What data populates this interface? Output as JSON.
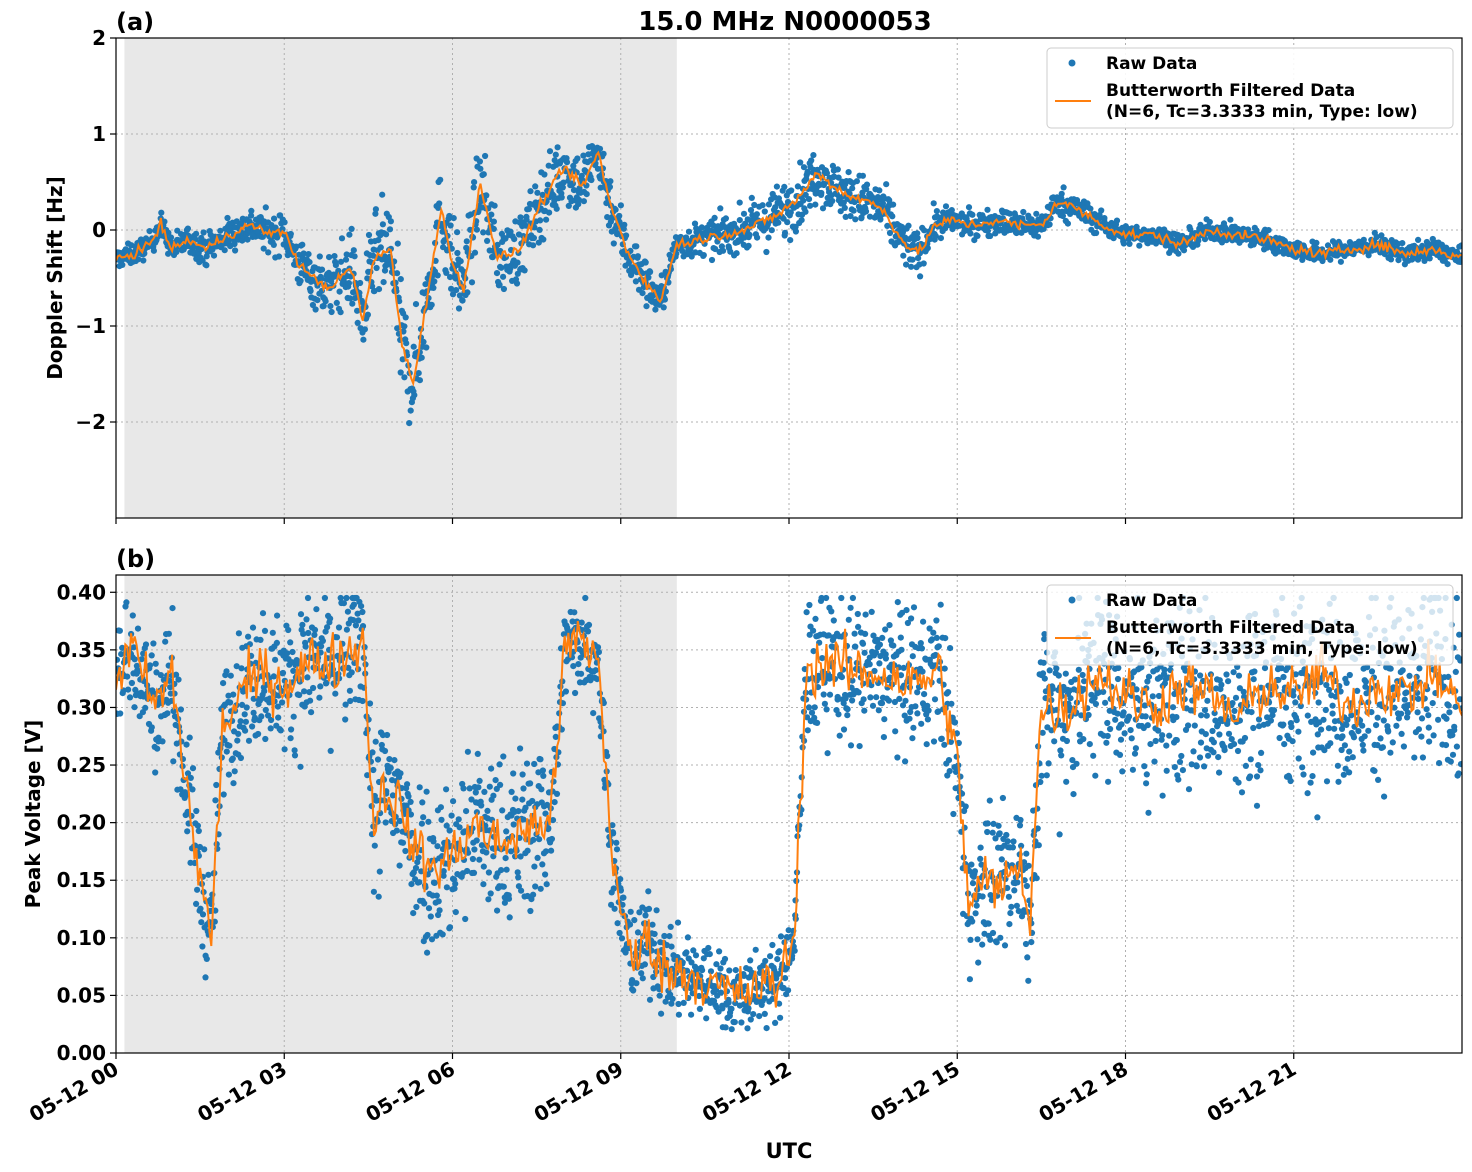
{
  "figure": {
    "title": "15.0 MHz N0000053",
    "xlabel": "UTC",
    "x_tick_labels": [
      "05-12 00",
      "05-12 03",
      "05-12 06",
      "05-12 09",
      "05-12 12",
      "05-12 15",
      "05-12 18",
      "05-12 21"
    ],
    "legend": {
      "raw_label": "Raw Data",
      "filtered_label_line1": "Butterworth Filtered Data",
      "filtered_label_line2": "(N=6, Tc=3.3333 min, Type: low)"
    },
    "colors": {
      "raw": "#1f77b4",
      "filtered": "#ff7f0e",
      "shade": "#e8e8e8",
      "grid": "#b0b0b0"
    }
  },
  "chart_data": [
    {
      "type": "scatter",
      "panel_label": "(a)",
      "title": "15.0 MHz N0000053",
      "xlabel": "",
      "ylabel": "Doppler Shift [Hz]",
      "x_unit": "hours since 05-12 00 UTC",
      "xlim": [
        0,
        24
      ],
      "ylim": [
        -3.0,
        2.0
      ],
      "y_ticks": [
        -2,
        -1,
        0,
        1,
        2
      ],
      "y_tick_labels": [
        "−2",
        "−1",
        "0",
        "1",
        "2"
      ],
      "shaded_region_x": [
        0.15,
        10.0
      ],
      "grid": true,
      "legend_position": "top-right",
      "series": [
        {
          "name": "Raw Data",
          "type": "scatter",
          "color": "#1f77b4"
        },
        {
          "name": "Butterworth Filtered Data (N=6, Tc=3.3333 min, Type: low)",
          "type": "line",
          "color": "#ff7f0e"
        }
      ],
      "filtered_profile": [
        [
          0.0,
          -0.3
        ],
        [
          0.3,
          -0.25
        ],
        [
          0.6,
          -0.15
        ],
        [
          0.8,
          0.05
        ],
        [
          1.0,
          -0.2
        ],
        [
          1.3,
          -0.1
        ],
        [
          1.6,
          -0.2
        ],
        [
          2.0,
          -0.05
        ],
        [
          2.4,
          0.05
        ],
        [
          2.8,
          -0.05
        ],
        [
          3.0,
          0.0
        ],
        [
          3.2,
          -0.3
        ],
        [
          3.5,
          -0.5
        ],
        [
          3.8,
          -0.6
        ],
        [
          4.2,
          -0.4
        ],
        [
          4.4,
          -0.95
        ],
        [
          4.6,
          -0.3
        ],
        [
          4.9,
          -0.2
        ],
        [
          5.1,
          -1.2
        ],
        [
          5.3,
          -1.6
        ],
        [
          5.6,
          -0.5
        ],
        [
          5.8,
          0.2
        ],
        [
          6.0,
          -0.35
        ],
        [
          6.2,
          -0.6
        ],
        [
          6.5,
          0.5
        ],
        [
          6.8,
          -0.3
        ],
        [
          7.2,
          -0.2
        ],
        [
          7.6,
          0.3
        ],
        [
          8.0,
          0.65
        ],
        [
          8.3,
          0.45
        ],
        [
          8.6,
          0.8
        ],
        [
          8.8,
          0.3
        ],
        [
          9.1,
          -0.2
        ],
        [
          9.4,
          -0.5
        ],
        [
          9.7,
          -0.75
        ],
        [
          10.0,
          -0.15
        ],
        [
          10.4,
          -0.1
        ],
        [
          10.8,
          -0.05
        ],
        [
          11.2,
          0.0
        ],
        [
          11.6,
          0.1
        ],
        [
          11.9,
          0.2
        ],
        [
          12.2,
          0.35
        ],
        [
          12.5,
          0.6
        ],
        [
          12.8,
          0.45
        ],
        [
          13.1,
          0.35
        ],
        [
          13.4,
          0.3
        ],
        [
          13.7,
          0.2
        ],
        [
          14.0,
          -0.1
        ],
        [
          14.3,
          -0.25
        ],
        [
          14.6,
          0.05
        ],
        [
          14.9,
          0.1
        ],
        [
          15.3,
          0.05
        ],
        [
          15.7,
          0.1
        ],
        [
          16.1,
          0.05
        ],
        [
          16.5,
          0.05
        ],
        [
          16.8,
          0.3
        ],
        [
          17.2,
          0.2
        ],
        [
          17.6,
          0.05
        ],
        [
          18.0,
          -0.05
        ],
        [
          18.5,
          -0.05
        ],
        [
          19.0,
          -0.15
        ],
        [
          19.5,
          0.0
        ],
        [
          20.0,
          -0.05
        ],
        [
          20.5,
          -0.1
        ],
        [
          21.0,
          -0.2
        ],
        [
          21.5,
          -0.25
        ],
        [
          22.0,
          -0.2
        ],
        [
          22.5,
          -0.15
        ],
        [
          23.0,
          -0.25
        ],
        [
          23.5,
          -0.2
        ],
        [
          24.0,
          -0.3
        ]
      ],
      "raw_spread_profile": [
        [
          0.0,
          0.1
        ],
        [
          3.0,
          0.2
        ],
        [
          4.0,
          0.35
        ],
        [
          5.0,
          0.55
        ],
        [
          6.0,
          0.45
        ],
        [
          7.0,
          0.35
        ],
        [
          8.0,
          0.35
        ],
        [
          9.0,
          0.3
        ],
        [
          10.0,
          0.15
        ],
        [
          11.0,
          0.2
        ],
        [
          12.0,
          0.3
        ],
        [
          13.0,
          0.25
        ],
        [
          14.0,
          0.25
        ],
        [
          15.0,
          0.12
        ],
        [
          17.0,
          0.15
        ],
        [
          18.0,
          0.1
        ],
        [
          24.0,
          0.1
        ]
      ]
    },
    {
      "type": "scatter",
      "panel_label": "(b)",
      "title": "",
      "xlabel": "UTC",
      "ylabel": "Peak Voltage [V]",
      "x_unit": "hours since 05-12 00 UTC",
      "xlim": [
        0,
        24
      ],
      "ylim": [
        0.0,
        0.415
      ],
      "y_ticks": [
        0.0,
        0.05,
        0.1,
        0.15,
        0.2,
        0.25,
        0.3,
        0.35,
        0.4
      ],
      "y_tick_labels": [
        "0.00",
        "0.05",
        "0.10",
        "0.15",
        "0.20",
        "0.25",
        "0.30",
        "0.35",
        "0.40"
      ],
      "shaded_region_x": [
        0.15,
        10.0
      ],
      "grid": true,
      "legend_position": "top-right",
      "series": [
        {
          "name": "Raw Data",
          "type": "scatter",
          "color": "#1f77b4"
        },
        {
          "name": "Butterworth Filtered Data (N=6, Tc=3.3333 min, Type: low)",
          "type": "line",
          "color": "#ff7f0e"
        }
      ],
      "filtered_profile": [
        [
          0.0,
          0.33
        ],
        [
          0.3,
          0.35
        ],
        [
          0.7,
          0.3
        ],
        [
          1.0,
          0.33
        ],
        [
          1.2,
          0.25
        ],
        [
          1.5,
          0.15
        ],
        [
          1.7,
          0.1
        ],
        [
          1.9,
          0.28
        ],
        [
          2.2,
          0.31
        ],
        [
          2.6,
          0.33
        ],
        [
          3.0,
          0.32
        ],
        [
          3.5,
          0.34
        ],
        [
          4.0,
          0.34
        ],
        [
          4.4,
          0.36
        ],
        [
          4.6,
          0.2
        ],
        [
          4.8,
          0.23
        ],
        [
          5.0,
          0.22
        ],
        [
          5.3,
          0.18
        ],
        [
          5.6,
          0.16
        ],
        [
          6.0,
          0.17
        ],
        [
          6.4,
          0.2
        ],
        [
          6.8,
          0.18
        ],
        [
          7.2,
          0.19
        ],
        [
          7.6,
          0.2
        ],
        [
          7.8,
          0.22
        ],
        [
          8.0,
          0.35
        ],
        [
          8.3,
          0.36
        ],
        [
          8.6,
          0.34
        ],
        [
          8.8,
          0.2
        ],
        [
          9.0,
          0.12
        ],
        [
          9.2,
          0.08
        ],
        [
          9.5,
          0.1
        ],
        [
          9.8,
          0.07
        ],
        [
          10.2,
          0.07
        ],
        [
          10.6,
          0.06
        ],
        [
          11.0,
          0.05
        ],
        [
          11.4,
          0.055
        ],
        [
          11.8,
          0.06
        ],
        [
          12.1,
          0.1
        ],
        [
          12.3,
          0.33
        ],
        [
          12.7,
          0.34
        ],
        [
          13.2,
          0.33
        ],
        [
          13.7,
          0.33
        ],
        [
          14.2,
          0.32
        ],
        [
          14.7,
          0.33
        ],
        [
          15.0,
          0.25
        ],
        [
          15.2,
          0.13
        ],
        [
          15.5,
          0.15
        ],
        [
          15.8,
          0.14
        ],
        [
          16.1,
          0.17
        ],
        [
          16.3,
          0.12
        ],
        [
          16.5,
          0.3
        ],
        [
          17.0,
          0.3
        ],
        [
          17.5,
          0.33
        ],
        [
          18.0,
          0.31
        ],
        [
          18.5,
          0.3
        ],
        [
          19.0,
          0.32
        ],
        [
          19.5,
          0.31
        ],
        [
          20.0,
          0.29
        ],
        [
          20.5,
          0.32
        ],
        [
          21.0,
          0.31
        ],
        [
          21.5,
          0.33
        ],
        [
          22.0,
          0.3
        ],
        [
          22.5,
          0.32
        ],
        [
          23.0,
          0.31
        ],
        [
          23.5,
          0.33
        ],
        [
          24.0,
          0.3
        ]
      ],
      "raw_spread_profile": [
        [
          0.0,
          0.05
        ],
        [
          4.4,
          0.06
        ],
        [
          4.6,
          0.07
        ],
        [
          7.8,
          0.07
        ],
        [
          8.0,
          0.04
        ],
        [
          8.8,
          0.05
        ],
        [
          9.0,
          0.04
        ],
        [
          12.1,
          0.03
        ],
        [
          12.3,
          0.06
        ],
        [
          14.9,
          0.06
        ],
        [
          15.0,
          0.06
        ],
        [
          16.4,
          0.06
        ],
        [
          16.5,
          0.08
        ],
        [
          24.0,
          0.08
        ]
      ]
    }
  ]
}
